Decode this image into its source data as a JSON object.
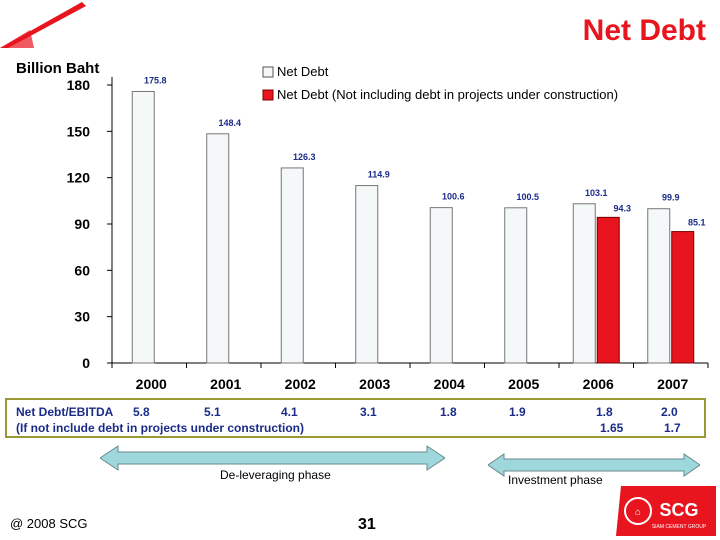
{
  "header": {
    "title": "Net Debt"
  },
  "unit_label": "Billion Baht",
  "chart_data": {
    "type": "bar",
    "categories": [
      "2000",
      "2001",
      "2002",
      "2003",
      "2004",
      "2005",
      "2006",
      "2007"
    ],
    "series": [
      {
        "name": "Net Debt",
        "values": [
          175.8,
          148.4,
          126.3,
          114.9,
          100.6,
          100.5,
          103.1,
          99.9
        ],
        "labels": [
          "175.8",
          "148.4",
          "126.3",
          "114.9",
          "100.6",
          "100.5",
          "103.1",
          "99.9"
        ],
        "color": "#f4f8f8"
      },
      {
        "name": "Net Debt (Not including debt in projects under construction)",
        "values": [
          null,
          null,
          null,
          null,
          null,
          null,
          94.3,
          85.1
        ],
        "labels": [
          "",
          "",
          "",
          "",
          "",
          "",
          "94.3",
          "85.1"
        ],
        "color": "#e8141e"
      }
    ],
    "yticks": [
      "0",
      "30",
      "60",
      "90",
      "120",
      "150",
      "180"
    ],
    "ylim": [
      0,
      180
    ],
    "legend_position": "top-right",
    "grid": false
  },
  "ebitda": {
    "label": "Net Debt/EBITDA",
    "values": [
      "5.8",
      "5.1",
      "4.1",
      "3.1",
      "1.8",
      "1.9",
      "1.8",
      "2.0"
    ],
    "sublabel": "(If not include debt in projects under construction)",
    "subvalues": [
      "1.65",
      "1.7"
    ]
  },
  "phases": {
    "deleveraging": "De-leveraging phase",
    "investment": "Investment phase"
  },
  "footer": {
    "copyright": "@ 2008 SCG",
    "page": "31",
    "logo_text": "SCG",
    "logo_sub": "SIAM CEMENT GROUP"
  },
  "colors": {
    "accent": "#e8141e",
    "ebitda_text": "#1a2b8a",
    "arrow": "#9fd8dc"
  }
}
